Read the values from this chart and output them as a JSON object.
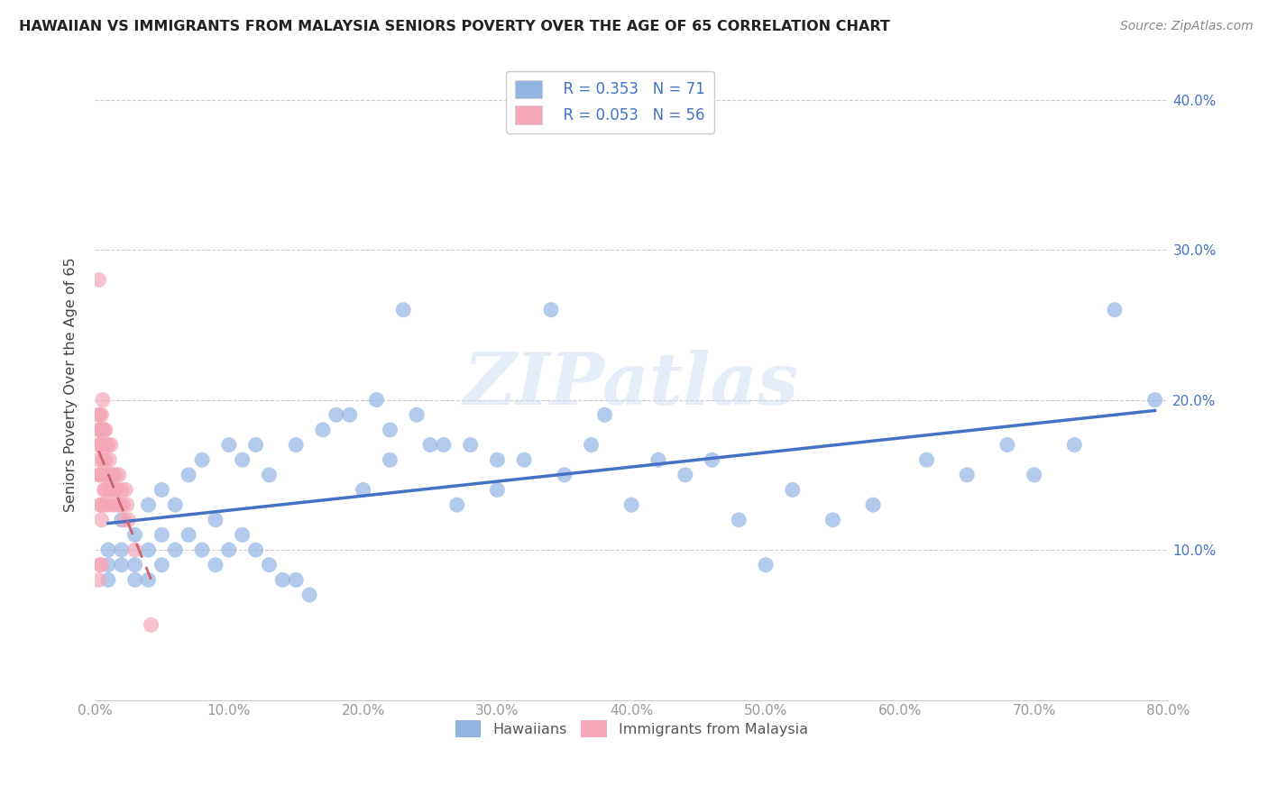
{
  "title": "HAWAIIAN VS IMMIGRANTS FROM MALAYSIA SENIORS POVERTY OVER THE AGE OF 65 CORRELATION CHART",
  "source": "Source: ZipAtlas.com",
  "ylabel": "Seniors Poverty Over the Age of 65",
  "xlim": [
    0,
    0.8
  ],
  "ylim": [
    0,
    0.42
  ],
  "watermark": "ZIPatlas",
  "legend_r1": "R = 0.353",
  "legend_n1": "N = 71",
  "legend_r2": "R = 0.053",
  "legend_n2": "N = 56",
  "hawaiian_color": "#92b4e3",
  "malaysia_color": "#f4a7b9",
  "trendline1_color": "#4472c4",
  "trendline2_color": "#c9636e",
  "hawaiians_x": [
    0.01,
    0.01,
    0.01,
    0.02,
    0.02,
    0.02,
    0.03,
    0.03,
    0.03,
    0.04,
    0.04,
    0.04,
    0.05,
    0.05,
    0.05,
    0.06,
    0.06,
    0.07,
    0.07,
    0.08,
    0.08,
    0.09,
    0.09,
    0.1,
    0.1,
    0.11,
    0.11,
    0.12,
    0.12,
    0.13,
    0.13,
    0.14,
    0.15,
    0.15,
    0.16,
    0.17,
    0.18,
    0.19,
    0.2,
    0.21,
    0.22,
    0.22,
    0.23,
    0.24,
    0.25,
    0.26,
    0.27,
    0.28,
    0.3,
    0.3,
    0.32,
    0.34,
    0.35,
    0.37,
    0.38,
    0.4,
    0.42,
    0.44,
    0.46,
    0.48,
    0.5,
    0.52,
    0.55,
    0.58,
    0.62,
    0.65,
    0.68,
    0.7,
    0.73,
    0.76,
    0.79
  ],
  "hawaiians_y": [
    0.1,
    0.09,
    0.08,
    0.12,
    0.1,
    0.09,
    0.11,
    0.09,
    0.08,
    0.13,
    0.1,
    0.08,
    0.14,
    0.11,
    0.09,
    0.13,
    0.1,
    0.15,
    0.11,
    0.16,
    0.1,
    0.12,
    0.09,
    0.17,
    0.1,
    0.16,
    0.11,
    0.17,
    0.1,
    0.15,
    0.09,
    0.08,
    0.17,
    0.08,
    0.07,
    0.18,
    0.19,
    0.19,
    0.14,
    0.2,
    0.18,
    0.16,
    0.26,
    0.19,
    0.17,
    0.17,
    0.13,
    0.17,
    0.16,
    0.14,
    0.16,
    0.26,
    0.15,
    0.17,
    0.19,
    0.13,
    0.16,
    0.15,
    0.16,
    0.12,
    0.09,
    0.14,
    0.12,
    0.13,
    0.16,
    0.15,
    0.17,
    0.15,
    0.17,
    0.26,
    0.2
  ],
  "malaysia_x": [
    0.003,
    0.003,
    0.003,
    0.003,
    0.003,
    0.003,
    0.003,
    0.004,
    0.004,
    0.004,
    0.004,
    0.004,
    0.004,
    0.005,
    0.005,
    0.005,
    0.005,
    0.005,
    0.005,
    0.005,
    0.006,
    0.006,
    0.006,
    0.007,
    0.007,
    0.007,
    0.007,
    0.008,
    0.008,
    0.008,
    0.009,
    0.009,
    0.01,
    0.01,
    0.01,
    0.011,
    0.011,
    0.012,
    0.012,
    0.013,
    0.014,
    0.014,
    0.015,
    0.016,
    0.016,
    0.017,
    0.018,
    0.019,
    0.02,
    0.021,
    0.022,
    0.023,
    0.024,
    0.025,
    0.03,
    0.042
  ],
  "malaysia_y": [
    0.28,
    0.19,
    0.18,
    0.17,
    0.16,
    0.15,
    0.08,
    0.19,
    0.18,
    0.17,
    0.15,
    0.13,
    0.09,
    0.19,
    0.18,
    0.17,
    0.15,
    0.13,
    0.12,
    0.09,
    0.2,
    0.18,
    0.16,
    0.18,
    0.16,
    0.14,
    0.13,
    0.18,
    0.16,
    0.14,
    0.17,
    0.15,
    0.17,
    0.15,
    0.13,
    0.16,
    0.14,
    0.17,
    0.15,
    0.14,
    0.15,
    0.13,
    0.14,
    0.15,
    0.13,
    0.14,
    0.15,
    0.13,
    0.14,
    0.13,
    0.12,
    0.14,
    0.13,
    0.12,
    0.1,
    0.05
  ]
}
